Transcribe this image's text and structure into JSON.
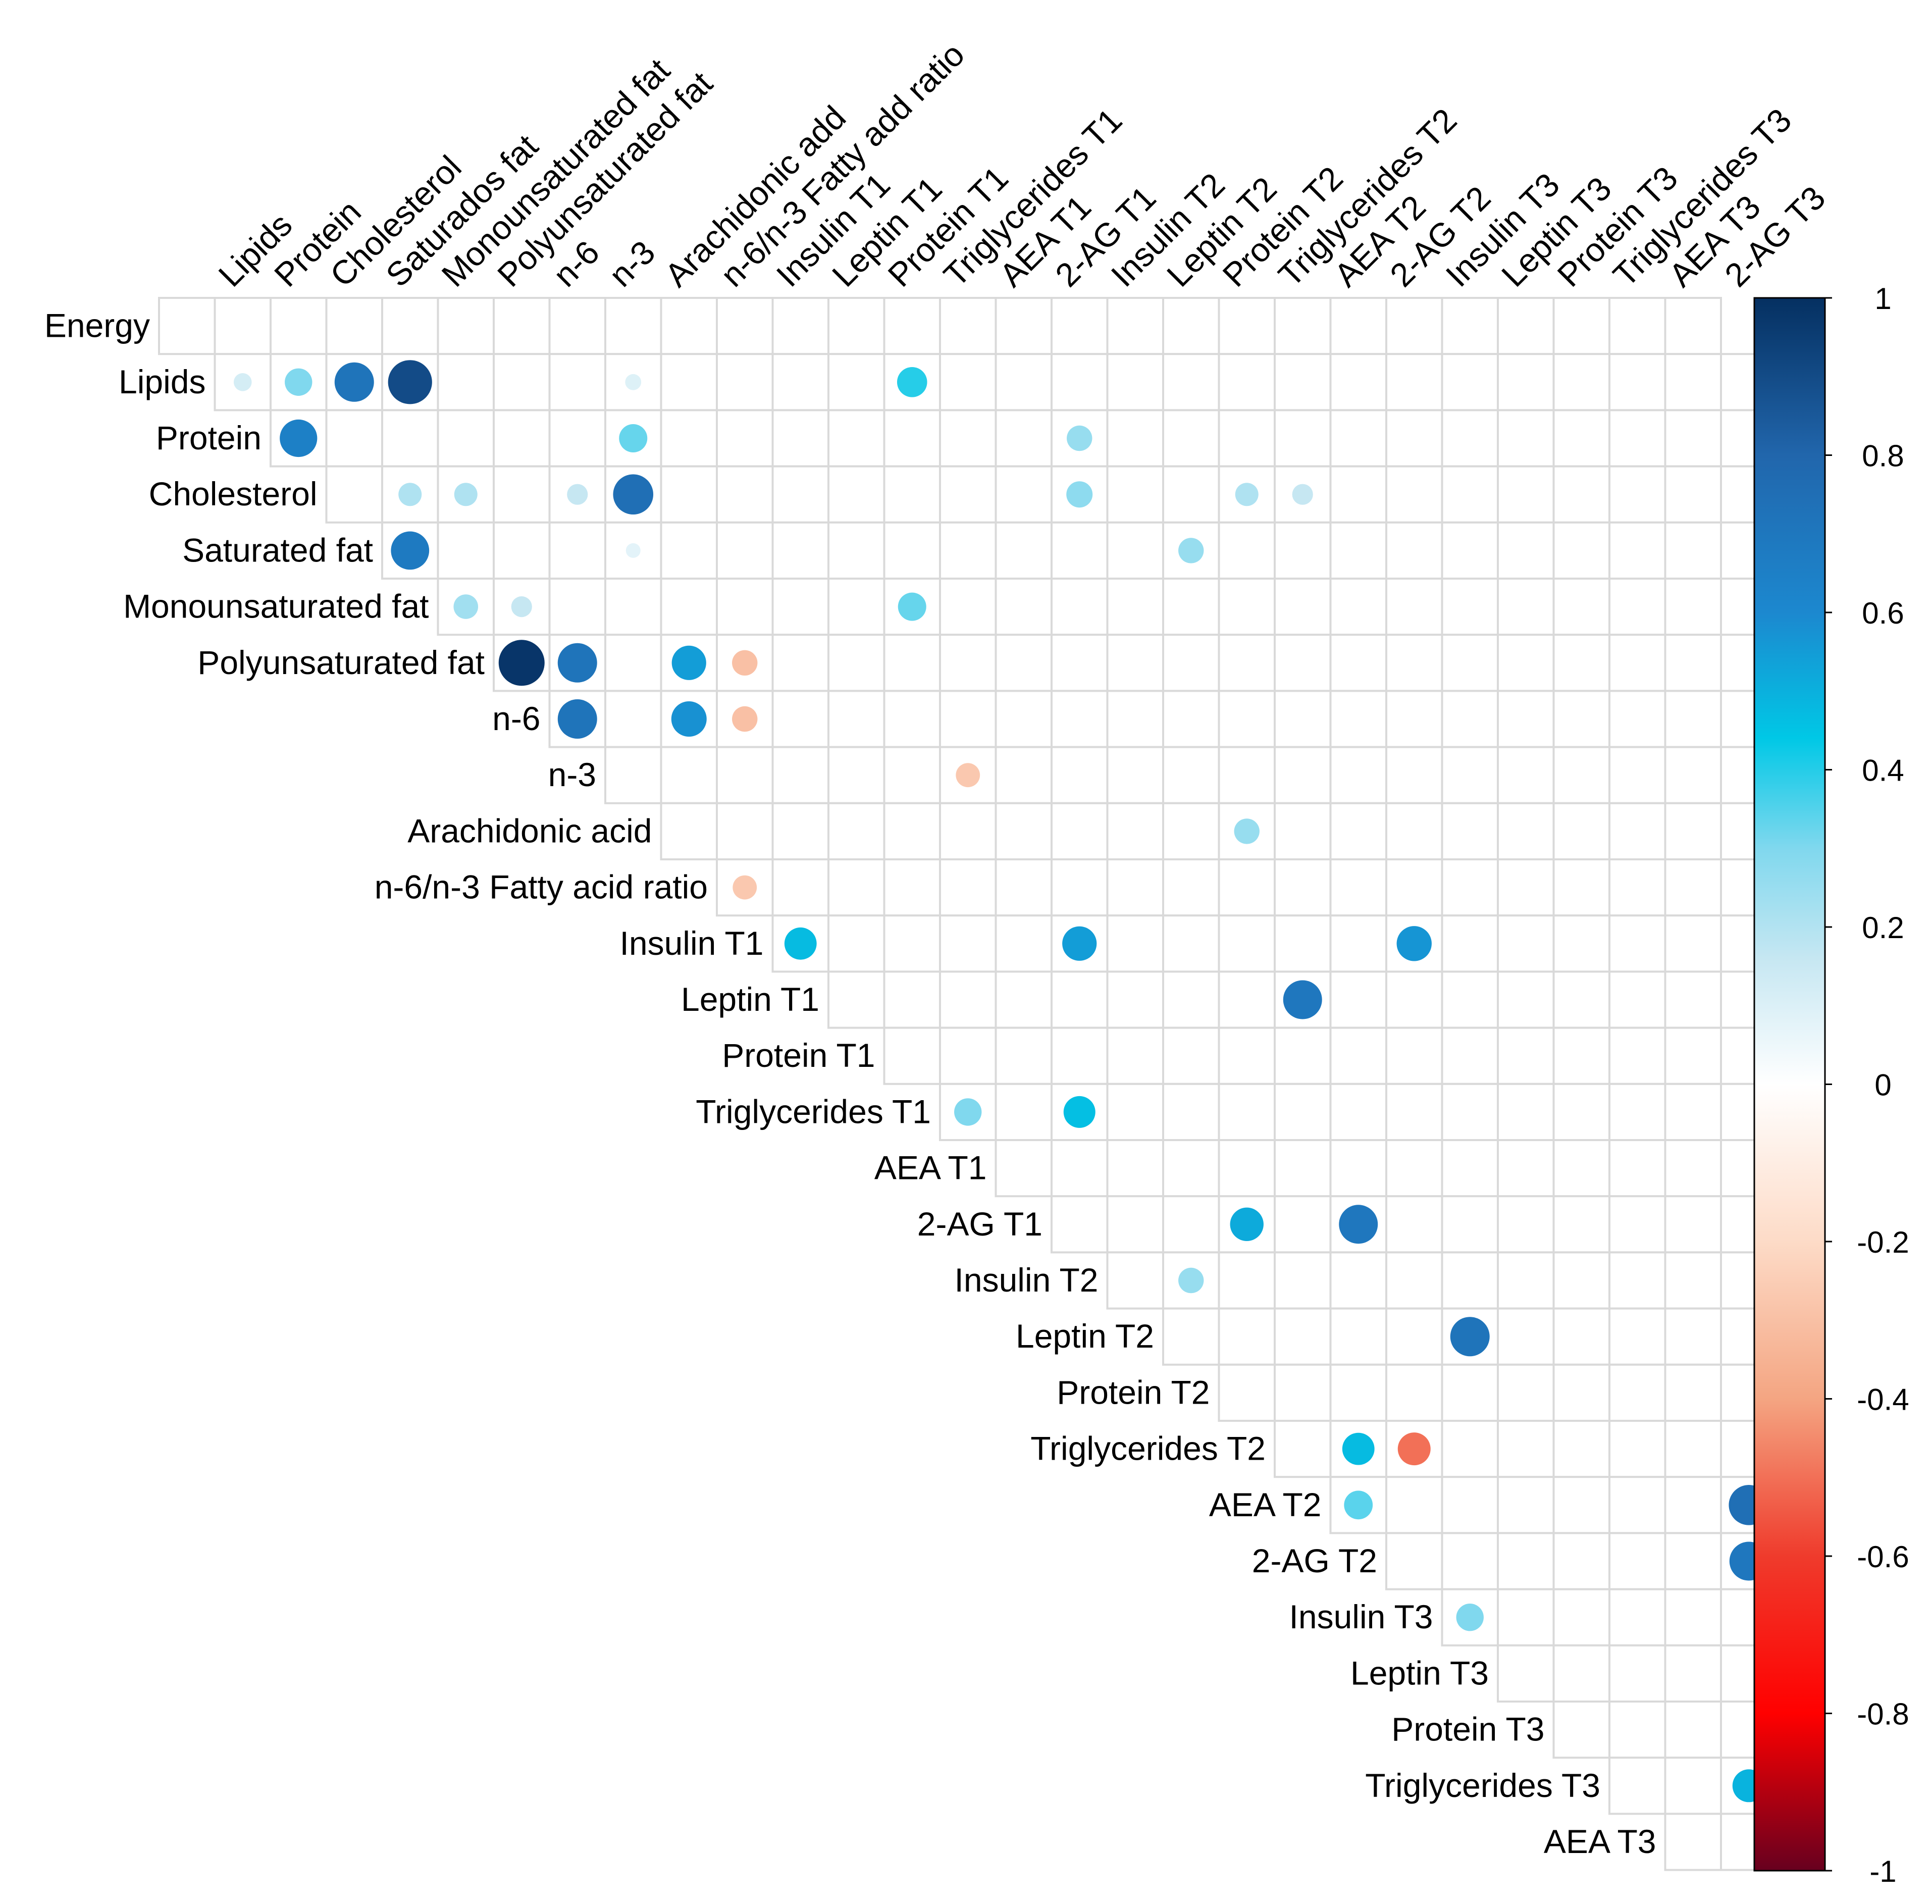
{
  "chart_data": {
    "type": "heatmap",
    "subtype": "correlation-upper-triangle-circles",
    "row_labels": [
      "Energy",
      "Lipids",
      "Protein",
      "Cholesterol",
      "Saturated fat",
      "Monounsaturated fat",
      "Polyunsaturated fat",
      "n-6",
      "n-3",
      "Arachidonic acid",
      "n-6/n-3 Fatty acid ratio",
      "Insulin T1",
      "Leptin T1",
      "Protein T1",
      "Triglycerides T1",
      "AEA T1",
      "2-AG T1",
      "Insulin T2",
      "Leptin T2",
      "Protein T2",
      "Triglycerides T2",
      "AEA T2",
      "2-AG T2",
      "Insulin T3",
      "Leptin T3",
      "Protein T3",
      "Triglycerides T3",
      "AEA T3"
    ],
    "column_labels": [
      "Lipids",
      "Protein",
      "Cholesterol",
      "Saturados fat",
      "Monounsaturated fat",
      "Polyunsaturated fat",
      "n-6",
      "n-3",
      "Arachidonic add",
      "n-6/n-3 Fatty add ratio",
      "Insulin T1",
      "Leptin T1",
      "Protein T1",
      "Triglycerides T1",
      "AEA T1",
      "2-AG T1",
      "Insulin T2",
      "Leptin T2",
      "Protein T2",
      "Triglycerides T2",
      "AEA T2",
      "2-AG T2",
      "Insulin T3",
      "Leptin T3",
      "Protein T3",
      "Triglycerides T3",
      "AEA T3",
      "2-AG T3"
    ],
    "correlations": [
      {
        "row": 1,
        "col": 0,
        "value": 0.15
      },
      {
        "row": 1,
        "col": 1,
        "value": 0.35
      },
      {
        "row": 1,
        "col": 2,
        "value": 0.72
      },
      {
        "row": 1,
        "col": 3,
        "value": 0.9
      },
      {
        "row": 1,
        "col": 7,
        "value": 0.12
      },
      {
        "row": 1,
        "col": 12,
        "value": 0.42
      },
      {
        "row": 2,
        "col": 1,
        "value": 0.65
      },
      {
        "row": 2,
        "col": 7,
        "value": 0.37
      },
      {
        "row": 2,
        "col": 15,
        "value": 0.3
      },
      {
        "row": 3,
        "col": 3,
        "value": 0.25
      },
      {
        "row": 3,
        "col": 4,
        "value": 0.25
      },
      {
        "row": 3,
        "col": 6,
        "value": 0.2
      },
      {
        "row": 3,
        "col": 7,
        "value": 0.75
      },
      {
        "row": 3,
        "col": 15,
        "value": 0.32
      },
      {
        "row": 3,
        "col": 18,
        "value": 0.25
      },
      {
        "row": 3,
        "col": 19,
        "value": 0.2
      },
      {
        "row": 4,
        "col": 3,
        "value": 0.68
      },
      {
        "row": 4,
        "col": 7,
        "value": 0.1
      },
      {
        "row": 4,
        "col": 17,
        "value": 0.3
      },
      {
        "row": 5,
        "col": 4,
        "value": 0.28
      },
      {
        "row": 5,
        "col": 5,
        "value": 0.2
      },
      {
        "row": 5,
        "col": 12,
        "value": 0.37
      },
      {
        "row": 6,
        "col": 5,
        "value": 0.98
      },
      {
        "row": 6,
        "col": 6,
        "value": 0.72
      },
      {
        "row": 6,
        "col": 8,
        "value": 0.55
      },
      {
        "row": 6,
        "col": 9,
        "value": -0.3
      },
      {
        "row": 7,
        "col": 6,
        "value": 0.72
      },
      {
        "row": 7,
        "col": 8,
        "value": 0.58
      },
      {
        "row": 7,
        "col": 9,
        "value": -0.3
      },
      {
        "row": 8,
        "col": 13,
        "value": -0.27
      },
      {
        "row": 9,
        "col": 18,
        "value": 0.3
      },
      {
        "row": 10,
        "col": 9,
        "value": -0.27
      },
      {
        "row": 11,
        "col": 10,
        "value": 0.48
      },
      {
        "row": 11,
        "col": 15,
        "value": 0.55
      },
      {
        "row": 11,
        "col": 21,
        "value": 0.57
      },
      {
        "row": 12,
        "col": 19,
        "value": 0.7
      },
      {
        "row": 14,
        "col": 13,
        "value": 0.35
      },
      {
        "row": 14,
        "col": 15,
        "value": 0.47
      },
      {
        "row": 16,
        "col": 18,
        "value": 0.52
      },
      {
        "row": 16,
        "col": 20,
        "value": 0.7
      },
      {
        "row": 17,
        "col": 17,
        "value": 0.3
      },
      {
        "row": 18,
        "col": 22,
        "value": 0.72
      },
      {
        "row": 20,
        "col": 20,
        "value": 0.48
      },
      {
        "row": 20,
        "col": 21,
        "value": -0.5
      },
      {
        "row": 21,
        "col": 20,
        "value": 0.38
      },
      {
        "row": 21,
        "col": 27,
        "value": 0.75
      },
      {
        "row": 22,
        "col": 27,
        "value": 0.7
      },
      {
        "row": 23,
        "col": 22,
        "value": 0.35
      },
      {
        "row": 26,
        "col": 27,
        "value": 0.5
      }
    ],
    "colorbar": {
      "range": [
        -1,
        1
      ],
      "ticks": [
        "1",
        "0.8",
        "0.6",
        "0.4",
        "0.2",
        "0",
        "-0.2",
        "-0.4",
        "-0.6",
        "-0.8",
        "-1"
      ]
    },
    "colors": {
      "strong_positive": "#053061",
      "positive": "#2166ac",
      "mid_positive": "#00b0e0",
      "weak_positive": "#d1e5f0",
      "neutral": "#ffffff",
      "weak_negative": "#fddbc7",
      "mid_negative": "#f4a582",
      "negative": "#d6604d",
      "strong_negative": "#67001f",
      "grid": "#d9d9d9"
    }
  }
}
